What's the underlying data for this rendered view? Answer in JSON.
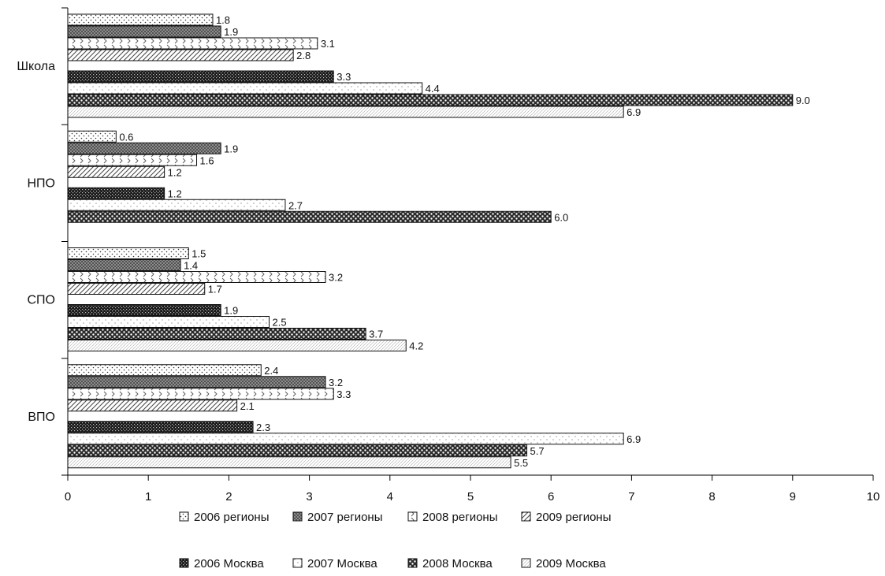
{
  "chart_data": {
    "type": "bar",
    "orientation": "horizontal",
    "categories": [
      "Школа",
      "НПО",
      "СПО",
      "ВПО"
    ],
    "series": [
      {
        "name": "2006 регионы",
        "values": [
          1.8,
          0.6,
          1.5,
          2.4
        ]
      },
      {
        "name": "2007 регионы",
        "values": [
          1.9,
          1.9,
          1.4,
          3.2
        ]
      },
      {
        "name": "2008 регионы",
        "values": [
          3.1,
          1.6,
          3.2,
          3.3
        ]
      },
      {
        "name": "2009 регионы",
        "values": [
          2.8,
          1.2,
          1.7,
          2.1
        ]
      },
      {
        "name": "2006 Москва",
        "values": [
          3.3,
          1.2,
          1.9,
          2.3
        ]
      },
      {
        "name": "2007 Москва",
        "values": [
          4.4,
          2.7,
          2.5,
          6.9
        ]
      },
      {
        "name": "2008 Москва",
        "values": [
          9.0,
          6.0,
          3.7,
          5.7
        ]
      },
      {
        "name": "2009 Москва",
        "values": [
          6.9,
          null,
          4.2,
          5.5
        ]
      }
    ],
    "data_labels": [
      [
        "1.8",
        "0.6",
        "1.5",
        "2.4"
      ],
      [
        "1.9",
        "1.9",
        "1.4",
        "3.2"
      ],
      [
        "3.1",
        "1.6",
        "3.2",
        "3.3"
      ],
      [
        "2.8",
        "1.2",
        "1.7",
        "2.1"
      ],
      [
        "3.3",
        "1.2",
        "1.9",
        "2.3"
      ],
      [
        "4.4",
        "2.7",
        "2.5",
        "6.9"
      ],
      [
        "9.0",
        "6.0",
        "3.7",
        "5.7"
      ],
      [
        "6.9",
        "",
        "4.2",
        "5.5"
      ]
    ],
    "xlim": [
      0,
      10
    ],
    "xticks": [
      "0",
      "1",
      "2",
      "3",
      "4",
      "5",
      "6",
      "7",
      "8",
      "9",
      "10"
    ],
    "grid": false,
    "legend_placement": "bottom"
  },
  "colors": {
    "axis": "#000000",
    "text": "#111111",
    "pattern_fg": "#222222",
    "bar_fill": "#ffffff"
  }
}
